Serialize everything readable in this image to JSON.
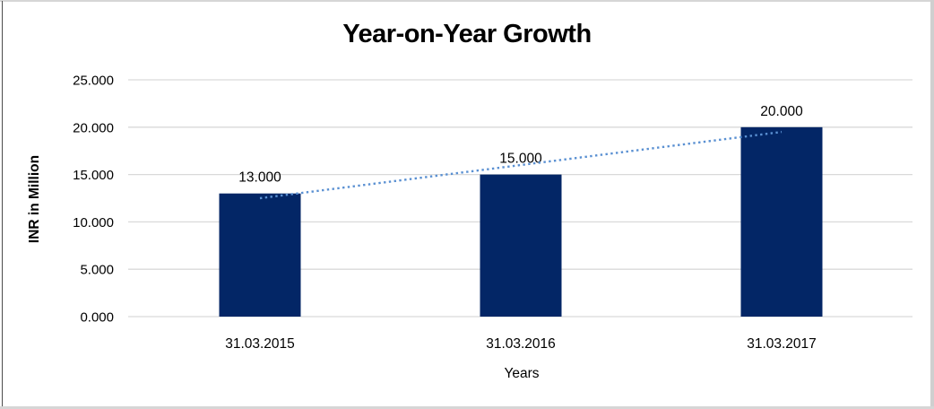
{
  "chart_data": {
    "type": "bar",
    "title": "Year-on-Year Growth",
    "xlabel": "Years",
    "ylabel": "INR in Million",
    "categories": [
      "31.03.2015",
      "31.03.2016",
      "31.03.2017"
    ],
    "values": [
      13000,
      15000,
      20000
    ],
    "data_labels": [
      "13.000",
      "15.000",
      "20.000"
    ],
    "y_ticks": {
      "values": [
        0,
        5000,
        10000,
        15000,
        20000,
        25000
      ],
      "labels": [
        "0.000",
        "5.000",
        "10.000",
        "15.000",
        "20.000",
        "25.000"
      ]
    },
    "ylim": [
      0,
      25000
    ],
    "grid": "horizontal",
    "legend": "none",
    "number_format": "thousands separated by dot",
    "trendline": {
      "type": "linear",
      "style": "dotted",
      "values": [
        12500,
        16000,
        19500
      ],
      "color": "#5a90d2"
    },
    "colors": {
      "bar": "#032666",
      "gridline": "#d9d9d9",
      "text": "#000000"
    }
  }
}
